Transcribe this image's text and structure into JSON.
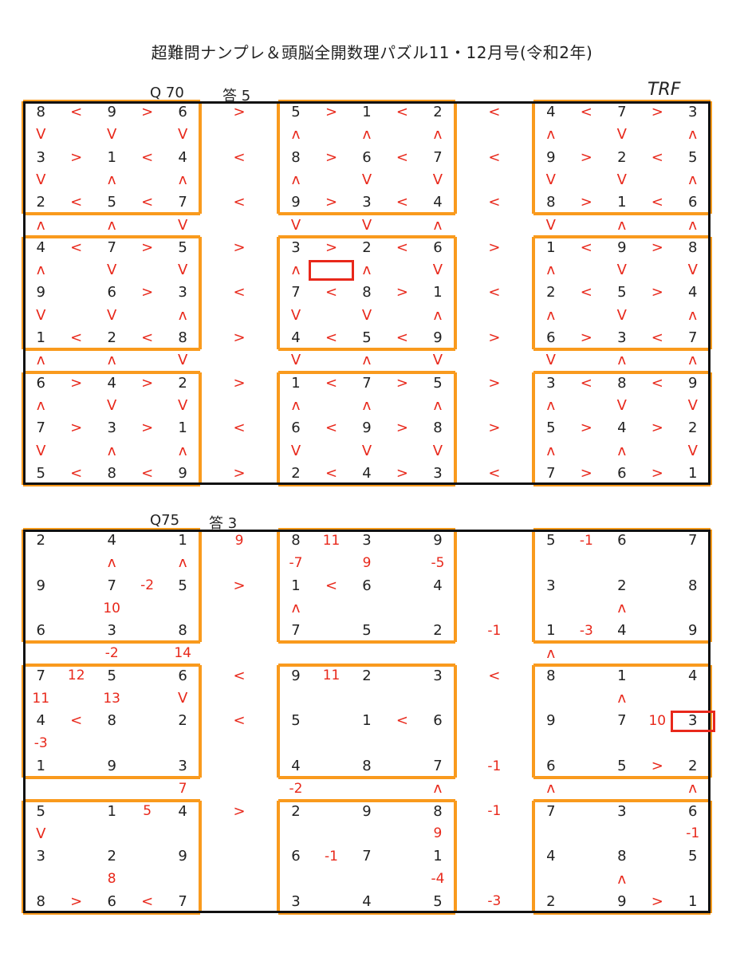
{
  "title": "超難問ナンプレ＆頭脳全開数理パズル11・12月号(令和2年)",
  "signature": "TRF",
  "puzzles": [
    {
      "label": "Q 70",
      "answer_label": "答  5",
      "highlight": [
        9,
        9
      ],
      "rows": [
        [
          "8",
          "<",
          "9",
          ">",
          "6",
          "",
          ">",
          "",
          "5",
          ">",
          "1",
          "<",
          "2",
          "",
          "<",
          "",
          "4",
          "<",
          "7",
          ">",
          "3"
        ],
        [
          "v",
          "",
          "v",
          "",
          "v",
          "",
          "",
          "",
          "^",
          "",
          "^",
          "",
          "^",
          "",
          "",
          "",
          "^",
          "",
          "v",
          "",
          "^"
        ],
        [
          "3",
          ">",
          "1",
          "<",
          "4",
          "",
          "<",
          "",
          "8",
          ">",
          "6",
          "<",
          "7",
          "",
          "<",
          "",
          "9",
          ">",
          "2",
          "<",
          "5"
        ],
        [
          "v",
          "",
          "^",
          "",
          "^",
          "",
          "",
          "",
          "^",
          "",
          "v",
          "",
          "v",
          "",
          "",
          "",
          "v",
          "",
          "v",
          "",
          "^"
        ],
        [
          "2",
          "<",
          "5",
          "<",
          "7",
          "",
          "<",
          "",
          "9",
          ">",
          "3",
          "<",
          "4",
          "",
          "<",
          "",
          "8",
          ">",
          "1",
          "<",
          "6"
        ],
        [
          "",
          "",
          "",
          "",
          "",
          "",
          "",
          "",
          "",
          "",
          "",
          "",
          "",
          "",
          "",
          "",
          "",
          "",
          "",
          "",
          ""
        ],
        [
          "^",
          "",
          "^",
          "",
          "v",
          "",
          "",
          "",
          "v",
          "",
          "v",
          "",
          "^",
          "",
          "",
          "",
          "v",
          "",
          "^",
          "",
          "^"
        ],
        [
          "",
          "",
          "",
          "",
          "",
          "",
          "",
          "",
          "",
          "",
          "",
          "",
          "",
          "",
          "",
          "",
          "",
          "",
          "",
          "",
          ""
        ],
        [
          "4",
          "<",
          "7",
          ">",
          "5",
          "",
          ">",
          "",
          "3",
          ">",
          "2",
          "<",
          "6",
          "",
          ">",
          "",
          "1",
          "<",
          "9",
          ">",
          "8"
        ],
        [
          "^",
          "",
          "v",
          "",
          "v",
          "",
          "",
          "",
          "^",
          "",
          "^",
          "",
          "v",
          "",
          "",
          "",
          "^",
          "",
          "v",
          "",
          "v"
        ],
        [
          "9",
          "",
          "6",
          ">",
          "3",
          "",
          "<",
          "",
          "7",
          "<",
          "8",
          ">",
          "1",
          "",
          "<",
          "",
          "2",
          "<",
          "5",
          ">",
          "4"
        ],
        [
          "v",
          "",
          "v",
          "",
          "^",
          "",
          "",
          "",
          "v",
          "",
          "v",
          "",
          "^",
          "",
          "",
          "",
          "^",
          "",
          "v",
          "",
          "^"
        ],
        [
          "1",
          "<",
          "2",
          "<",
          "8",
          "",
          ">",
          "",
          "4",
          "<",
          "5",
          "<",
          "9",
          "",
          ">",
          "",
          "6",
          ">",
          "3",
          "<",
          "7"
        ],
        [
          "",
          "",
          "",
          "",
          "",
          "",
          "",
          "",
          "",
          "",
          "",
          "",
          "",
          "",
          "",
          "",
          "",
          "",
          "",
          "",
          ""
        ],
        [
          "^",
          "",
          "^",
          "",
          "v",
          "",
          "",
          "",
          "v",
          "",
          "^",
          "",
          "v",
          "",
          "",
          "",
          "v",
          "",
          "^",
          "",
          "^"
        ],
        [
          "",
          "",
          "",
          "",
          "",
          "",
          "",
          "",
          "",
          "",
          "",
          "",
          "",
          "",
          "",
          "",
          "",
          "",
          "",
          "",
          ""
        ],
        [
          "6",
          ">",
          "4",
          ">",
          "2",
          "",
          ">",
          "",
          "1",
          "<",
          "7",
          ">",
          "5",
          "",
          ">",
          "",
          "3",
          "<",
          "8",
          "<",
          "9"
        ],
        [
          "^",
          "",
          "v",
          "",
          "v",
          "",
          "",
          "",
          "^",
          "",
          "^",
          "",
          "^",
          "",
          "",
          "",
          "^",
          "",
          "v",
          "",
          "v"
        ],
        [
          "7",
          ">",
          "3",
          ">",
          "1",
          "",
          "<",
          "",
          "6",
          "<",
          "9",
          ">",
          "8",
          "",
          ">",
          "",
          "5",
          ">",
          "4",
          ">",
          "2"
        ],
        [
          "v",
          "",
          "^",
          "",
          "^",
          "",
          "",
          "",
          "v",
          "",
          "v",
          "",
          "v",
          "",
          "",
          "",
          "^",
          "",
          "^",
          "",
          "v"
        ],
        [
          "5",
          "<",
          "8",
          "<",
          "9",
          "",
          ">",
          "",
          "2",
          "<",
          "4",
          ">",
          "3",
          "",
          "<",
          "",
          "7",
          ">",
          "6",
          ">",
          "1"
        ]
      ]
    },
    {
      "label": "Q75",
      "answer_label": "答  3",
      "highlight": [
        10,
        20
      ],
      "rows": [
        [
          "2",
          "",
          "4",
          "",
          "1",
          "",
          "9",
          "",
          "8",
          "11",
          "3",
          "",
          "9",
          "",
          "",
          "",
          "5",
          "-1",
          "6",
          "",
          "7"
        ],
        [
          "",
          "",
          "^",
          "",
          "^",
          "",
          "",
          "",
          "-7",
          "",
          "9",
          "",
          "-5",
          "",
          "",
          "",
          "",
          "",
          "",
          "",
          ""
        ],
        [
          "9",
          "",
          "7",
          "-2",
          "5",
          "",
          ">",
          "",
          "1",
          "<",
          "6",
          "",
          "4",
          "",
          "",
          "",
          "3",
          "",
          "2",
          "",
          "8"
        ],
        [
          "",
          "",
          "10",
          "",
          "",
          "",
          "",
          "",
          "^",
          "",
          "",
          "",
          "",
          "",
          "",
          "",
          "",
          "",
          "^",
          "",
          ""
        ],
        [
          "6",
          "",
          "3",
          "",
          "8",
          "",
          "",
          "",
          "7",
          "",
          "5",
          "",
          "2",
          "",
          "-1",
          "",
          "1",
          "-3",
          "4",
          "",
          "9"
        ],
        [
          "",
          "",
          "",
          "",
          "",
          "",
          "",
          "",
          "",
          "",
          "",
          "",
          "",
          "",
          "",
          "",
          "",
          "",
          "",
          "",
          ""
        ],
        [
          "",
          "",
          "-2",
          "",
          "14",
          "",
          "",
          "",
          "",
          "",
          "",
          "",
          "",
          "",
          "",
          "",
          "^",
          "",
          "",
          "",
          ""
        ],
        [
          "",
          "",
          "",
          "",
          "",
          "",
          "",
          "",
          "",
          "",
          "",
          "",
          "",
          "",
          "",
          "",
          "",
          "",
          "",
          "",
          ""
        ],
        [
          "7",
          "12",
          "5",
          "",
          "6",
          "",
          "<",
          "",
          "9",
          "11",
          "2",
          "",
          "3",
          "",
          "<",
          "",
          "8",
          "",
          "1",
          "",
          "4"
        ],
        [
          "11",
          "",
          "13",
          "",
          "v",
          "",
          "",
          "",
          "",
          "",
          "",
          "",
          "",
          "",
          "",
          "",
          "",
          "",
          "^",
          "",
          ""
        ],
        [
          "4",
          "<",
          "8",
          "",
          "2",
          "",
          "<",
          "",
          "5",
          "",
          "1",
          "<",
          "6",
          "",
          "",
          "",
          "9",
          "",
          "7",
          "10",
          "3"
        ],
        [
          "-3",
          "",
          "",
          "",
          "",
          "",
          "",
          "",
          "",
          "",
          "",
          "",
          "",
          "",
          "",
          "",
          "",
          "",
          "",
          "",
          ""
        ],
        [
          "1",
          "",
          "9",
          "",
          "3",
          "",
          "",
          "",
          "4",
          "",
          "8",
          "",
          "7",
          "",
          "-1",
          "",
          "6",
          "",
          "5",
          ">",
          "2"
        ],
        [
          "",
          "",
          "",
          "",
          "",
          "",
          "",
          "",
          "",
          "",
          "",
          "",
          "",
          "",
          "",
          "",
          "",
          "",
          "",
          "",
          ""
        ],
        [
          "",
          "",
          "",
          "",
          "7",
          "",
          "",
          "",
          "-2",
          "",
          "",
          "",
          "^",
          "",
          "",
          "",
          "^",
          "",
          "",
          "",
          "^"
        ],
        [
          "",
          "",
          "",
          "",
          "",
          "",
          "",
          "",
          "",
          "",
          "",
          "",
          "",
          "",
          "",
          "",
          "",
          "",
          "",
          "",
          ""
        ],
        [
          "5",
          "",
          "1",
          "5",
          "4",
          "",
          ">",
          "",
          "2",
          "",
          "9",
          "",
          "8",
          "",
          "-1",
          "",
          "7",
          "",
          "3",
          "",
          "6"
        ],
        [
          "v",
          "",
          "",
          "",
          "",
          "",
          "",
          "",
          "",
          "",
          "",
          "",
          "9",
          "",
          "",
          "",
          "",
          "",
          "",
          "",
          "-1"
        ],
        [
          "3",
          "",
          "2",
          "",
          "9",
          "",
          "",
          "",
          "6",
          "-1",
          "7",
          "",
          "1",
          "",
          "",
          "",
          "4",
          "",
          "8",
          "",
          "5"
        ],
        [
          "",
          "",
          "8",
          "",
          "",
          "",
          "",
          "",
          "",
          "",
          "",
          "",
          "-4",
          "",
          "",
          "",
          "",
          "",
          "^",
          "",
          ""
        ],
        [
          "8",
          ">",
          "6",
          "<",
          "7",
          "",
          "",
          "",
          "3",
          "",
          "4",
          "",
          "5",
          "",
          "-3",
          "",
          "2",
          "",
          "9",
          ">",
          "1"
        ]
      ]
    }
  ]
}
